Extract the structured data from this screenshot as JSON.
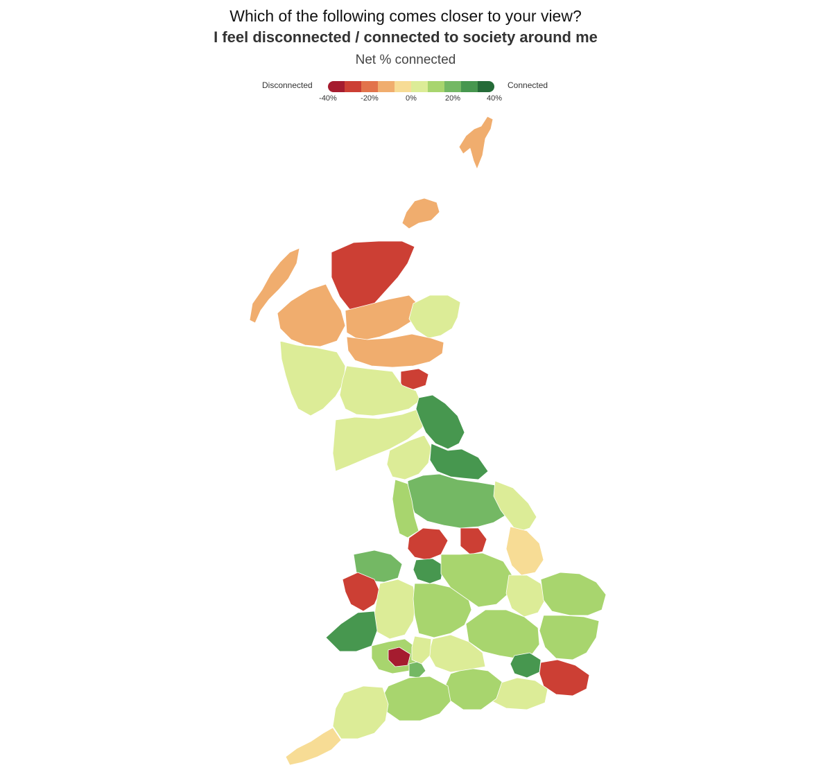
{
  "title": {
    "question": "Which of the following comes closer to your view?",
    "statement": "I feel disconnected / connected to society around me",
    "measure": "Net % connected"
  },
  "legend": {
    "left_label": "Disconnected",
    "right_label": "Connected",
    "colors": [
      "#a51c2f",
      "#cc3f34",
      "#e2734b",
      "#f0ad6e",
      "#f7dc95",
      "#dcec97",
      "#a8d56e",
      "#74b864",
      "#47974f",
      "#256b38"
    ],
    "ticks": [
      {
        "label": "-40%",
        "value": -40
      },
      {
        "label": "-20%",
        "value": -20
      },
      {
        "label": "0%",
        "value": 0
      },
      {
        "label": "20%",
        "value": 20
      },
      {
        "label": "40%",
        "value": 40
      }
    ],
    "range": [
      -40,
      40
    ]
  },
  "map": {
    "type": "choropleth",
    "region": "Great Britain",
    "regions": [
      {
        "name": "shetland",
        "value": -15
      },
      {
        "name": "orkney",
        "value": -15
      },
      {
        "name": "western-isles",
        "value": -15
      },
      {
        "name": "caithness-sutherland",
        "value": -25
      },
      {
        "name": "ross-skye",
        "value": -15
      },
      {
        "name": "inverness-moray",
        "value": -15
      },
      {
        "name": "aberdeenshire",
        "value": 2
      },
      {
        "name": "argyll-highlands",
        "value": 5
      },
      {
        "name": "perth-angus",
        "value": -15
      },
      {
        "name": "fife",
        "value": -25
      },
      {
        "name": "central-belt",
        "value": 2
      },
      {
        "name": "southern-scotland",
        "value": 5
      },
      {
        "name": "northumberland",
        "value": 25
      },
      {
        "name": "cumbria",
        "value": 5
      },
      {
        "name": "durham-dales",
        "value": 25
      },
      {
        "name": "yorkshire",
        "value": 20
      },
      {
        "name": "lancashire",
        "value": 15
      },
      {
        "name": "east-yorkshire",
        "value": 5
      },
      {
        "name": "lincolnshire",
        "value": -3
      },
      {
        "name": "north-wales",
        "value": 20
      },
      {
        "name": "anglesey-gwynedd",
        "value": -25
      },
      {
        "name": "west-wales",
        "value": 25
      },
      {
        "name": "mid-wales",
        "value": 5
      },
      {
        "name": "south-wales",
        "value": 15
      },
      {
        "name": "swansea-valleys",
        "value": -35
      },
      {
        "name": "cardiff",
        "value": 20
      },
      {
        "name": "west-midlands",
        "value": 10
      },
      {
        "name": "east-midlands",
        "value": 10
      },
      {
        "name": "cambridgeshire",
        "value": 5
      },
      {
        "name": "norfolk",
        "value": 10
      },
      {
        "name": "suffolk-essex",
        "value": 15
      },
      {
        "name": "home-counties",
        "value": 10
      },
      {
        "name": "london",
        "value": 25
      },
      {
        "name": "kent",
        "value": -25
      },
      {
        "name": "sussex",
        "value": 5
      },
      {
        "name": "hampshire",
        "value": 15
      },
      {
        "name": "wiltshire-oxford",
        "value": 5
      },
      {
        "name": "gloucestershire",
        "value": 5
      },
      {
        "name": "somerset-dorset",
        "value": 10
      },
      {
        "name": "devon",
        "value": 5
      },
      {
        "name": "cornwall",
        "value": -3
      },
      {
        "name": "merseyside-manchester",
        "value": -25
      },
      {
        "name": "sheffield",
        "value": -30
      },
      {
        "name": "staffordshire",
        "value": 25
      }
    ]
  }
}
